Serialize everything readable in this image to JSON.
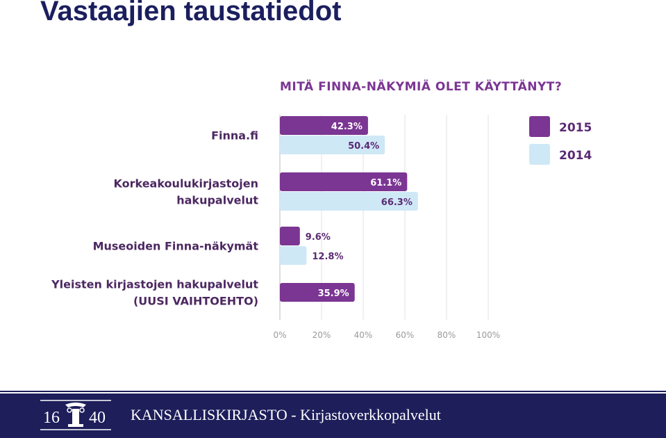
{
  "slide": {
    "title": "Vastaajien taustatiedot"
  },
  "footer": {
    "text": "KANSALLISKIRJASTO - Kirjastoverkkopalvelut",
    "logo_text_left": "16",
    "logo_text_right": "40"
  },
  "colors": {
    "series_2015": "#7b3593",
    "series_2014": "#cfe8f6",
    "footer_bg": "#1d1e5a",
    "title": "#1b1f5e"
  },
  "chart_data": {
    "type": "bar",
    "orientation": "horizontal",
    "title": "MITÄ FINNA-NÄKYMIÄ OLET KÄYTTÄNYT?",
    "categories": [
      [
        "Finna.fi"
      ],
      [
        "Korkeakoulukirjastojen",
        "hakupalvelut"
      ],
      [
        "Museoiden Finna-näkymät"
      ],
      [
        "Yleisten kirjastojen hakupalvelut",
        "(UUSI VAIHTOEHTO)"
      ]
    ],
    "series": [
      {
        "name": "2015",
        "values": [
          42.3,
          61.1,
          9.6,
          35.9
        ],
        "labels": [
          "42.3%",
          "61.1%",
          "9.6%",
          "35.9%"
        ]
      },
      {
        "name": "2014",
        "values": [
          50.4,
          66.3,
          12.8,
          null
        ],
        "labels": [
          "50.4%",
          "66.3%",
          "12.8%",
          ""
        ]
      }
    ],
    "xlim": [
      0,
      100
    ],
    "xticks": [
      "0%",
      "20%",
      "40%",
      "60%",
      "80%",
      "100%"
    ],
    "grid": true,
    "legend_position": "top-right",
    "unit": "%"
  }
}
